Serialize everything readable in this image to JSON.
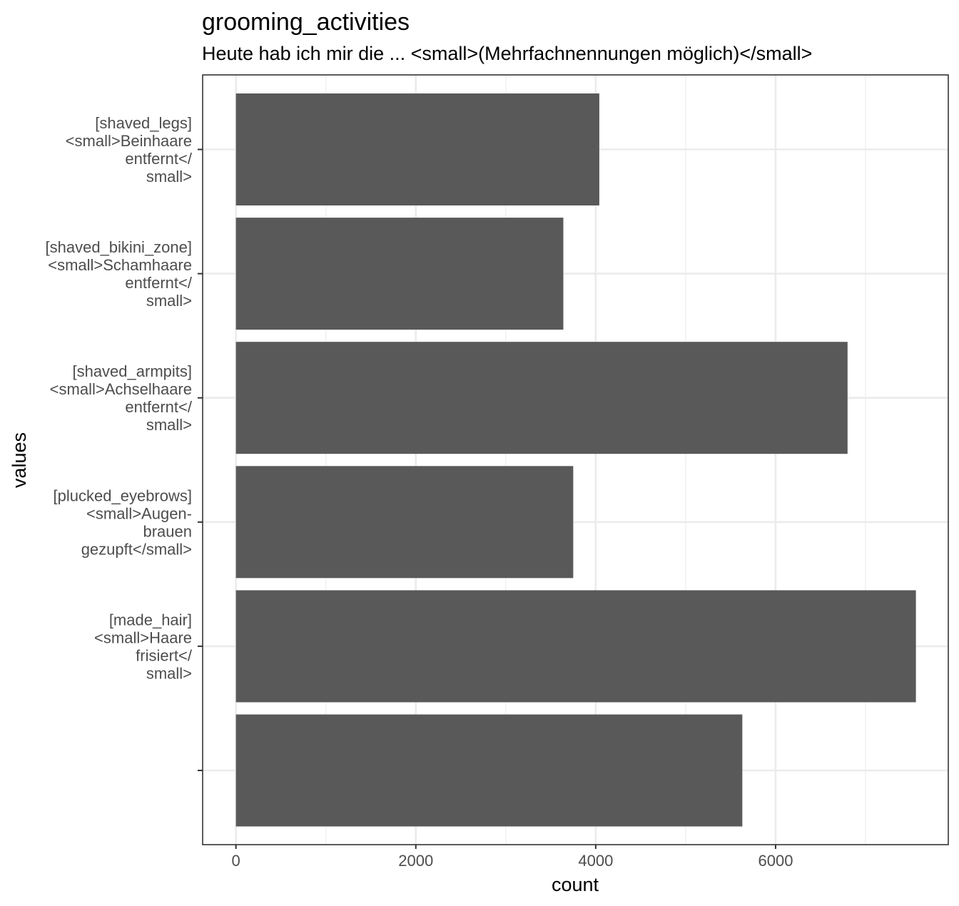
{
  "chart_data": {
    "type": "bar",
    "orientation": "horizontal",
    "title": "grooming_activities",
    "subtitle": "Heute hab ich mir die ... <small>(Mehrfachnennungen möglich)</small>",
    "xlabel": "count",
    "ylabel": "values",
    "xlim": [
      -370,
      7920
    ],
    "x_ticks": [
      0,
      2000,
      4000,
      6000
    ],
    "categories": [
      {
        "lines": [
          "[shaved_legs]",
          "<small>Beinhaare",
          "entfernt</",
          "small>"
        ]
      },
      {
        "lines": [
          "[shaved_bikini_zone]",
          "<small>Schamhaare",
          "entfernt</",
          "small>"
        ]
      },
      {
        "lines": [
          "[shaved_armpits]",
          "<small>Achselhaare",
          "entfernt</",
          "small>"
        ]
      },
      {
        "lines": [
          "[plucked_eyebrows]",
          "<small>Augen-",
          "brauen",
          "gezupft</small>"
        ]
      },
      {
        "lines": [
          "[made_hair]",
          "<small>Haare",
          "frisiert</",
          "small>"
        ]
      },
      {
        "lines": []
      }
    ],
    "values": [
      4040,
      3640,
      6800,
      3750,
      7560,
      5630
    ],
    "bar_color": "#595959",
    "grid": true,
    "legend": "none"
  }
}
